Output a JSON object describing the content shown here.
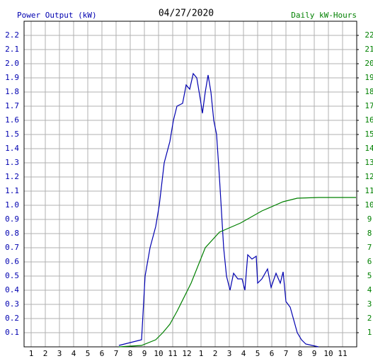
{
  "chart_data": {
    "type": "line",
    "title": "04/27/2020",
    "y_label": "Power Output (kW)",
    "y2_label": "Daily kW-Hours",
    "xlim": [
      0.5,
      24
    ],
    "xticks": [
      1,
      2,
      3,
      4,
      5,
      6,
      7,
      8,
      9,
      10,
      11,
      12,
      {
        "value": 13,
        "label": "1"
      },
      {
        "value": 14,
        "label": "2"
      },
      {
        "value": 15,
        "label": "3"
      },
      {
        "value": 16,
        "label": "4"
      },
      {
        "value": 17,
        "label": "5"
      },
      {
        "value": 18,
        "label": "6"
      },
      {
        "value": 19,
        "label": "7"
      },
      {
        "value": 20,
        "label": "8"
      },
      {
        "value": 21,
        "label": "9"
      },
      {
        "value": 22,
        "label": "10"
      },
      {
        "value": 23,
        "label": "11"
      }
    ],
    "ylim": [
      0,
      2.3
    ],
    "yticks": [
      0.1,
      0.2,
      0.3,
      0.4,
      0.5,
      0.6,
      0.7,
      0.8,
      0.9,
      {
        "value": 1,
        "label": "1.0"
      },
      1.1,
      1.2,
      1.3,
      1.4,
      1.5,
      1.6,
      1.7,
      1.8,
      1.9,
      {
        "value": 2,
        "label": "2.0"
      },
      2.1,
      2.2
    ],
    "y2lim": [
      0,
      23
    ],
    "y2ticks": [
      1,
      2,
      3,
      4,
      5,
      6,
      7,
      8,
      9,
      10,
      11,
      12,
      13,
      14,
      15,
      16,
      17,
      18,
      19,
      20,
      21,
      22
    ],
    "grid": true,
    "series": [
      {
        "name": "Power Output (kW)",
        "color": "#0000b0",
        "x": [
          7.2,
          8.8,
          9.05,
          9.4,
          9.8,
          10.05,
          10.4,
          10.8,
          11.05,
          11.3,
          11.7,
          11.95,
          12.2,
          12.45,
          12.7,
          12.95,
          13.1,
          13.3,
          13.5,
          13.7,
          13.9,
          14.1,
          14.3,
          14.6,
          14.8,
          15.05,
          15.3,
          15.6,
          15.9,
          16.1,
          16.3,
          16.6,
          16.9,
          17.0,
          17.3,
          17.7,
          17.95,
          18.3,
          18.6,
          18.8,
          19.0,
          19.3,
          19.8,
          20.1,
          20.4,
          21.3
        ],
        "values": [
          0.01,
          0.05,
          0.5,
          0.7,
          0.85,
          1.0,
          1.3,
          1.45,
          1.6,
          1.7,
          1.72,
          1.85,
          1.82,
          1.93,
          1.9,
          1.75,
          1.65,
          1.8,
          1.92,
          1.8,
          1.6,
          1.5,
          1.2,
          0.7,
          0.5,
          0.4,
          0.52,
          0.48,
          0.48,
          0.4,
          0.65,
          0.62,
          0.64,
          0.45,
          0.48,
          0.55,
          0.42,
          0.52,
          0.45,
          0.53,
          0.32,
          0.28,
          0.1,
          0.05,
          0.02,
          0.0
        ]
      },
      {
        "name": "Daily kW-Hours",
        "color": "#008000",
        "axis": "y2",
        "x": [
          7.2,
          8.8,
          9.8,
          10.3,
          10.8,
          11.3,
          12.3,
          13.3,
          14.3,
          15.8,
          17.3,
          18.8,
          19.8,
          21.3,
          23.95
        ],
        "values": [
          0,
          0.1,
          0.5,
          1.0,
          1.6,
          2.5,
          4.5,
          7.0,
          8.1,
          8.75,
          9.6,
          10.25,
          10.5,
          10.55,
          10.55
        ]
      }
    ]
  }
}
